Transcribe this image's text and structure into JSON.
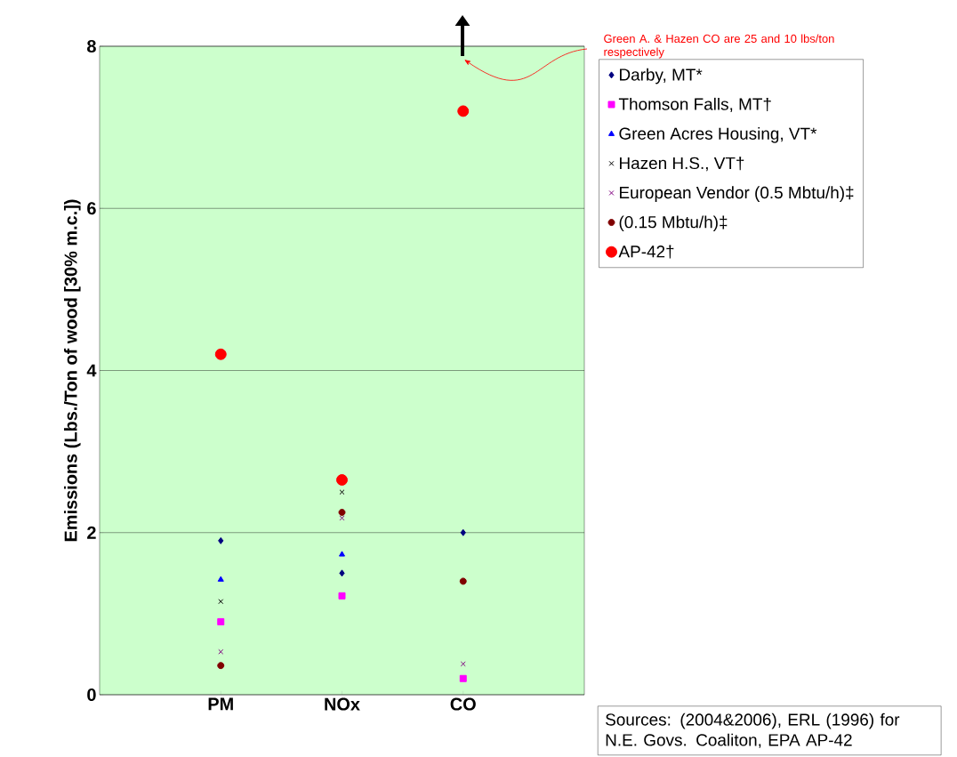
{
  "chart_data": {
    "type": "scatter",
    "ylabel": "Emissions (Lbs./Ton of wood [30% m.c.])",
    "categories": [
      "PM",
      "NOx",
      "CO"
    ],
    "ylim": [
      0,
      8
    ],
    "yticks": [
      0,
      2,
      4,
      6,
      8
    ],
    "grid": "y",
    "legend": "right",
    "series": [
      {
        "name": "Darby, MT*",
        "color": "#000080",
        "marker": "diamond",
        "values": [
          1.9,
          1.5,
          2.0
        ]
      },
      {
        "name": "Thomson Falls, MT†",
        "color": "#ff00ff",
        "marker": "square",
        "values": [
          0.9,
          1.22,
          0.2
        ]
      },
      {
        "name": "Green Acres Housing, VT*",
        "color": "#0000ff",
        "marker": "triangle",
        "values": [
          1.42,
          1.73,
          null
        ]
      },
      {
        "name": "Hazen H.S., VT†",
        "color": "#000000",
        "marker": "cross",
        "values": [
          1.15,
          2.5,
          null
        ]
      },
      {
        "name": "European Vendor (0.5 Mbtu/h)‡",
        "color": "#800080",
        "marker": "cross",
        "values": [
          0.53,
          2.18,
          0.38
        ]
      },
      {
        "name": "(0.15 Mbtu/h)‡",
        "color": "#800000",
        "marker": "circle",
        "values": [
          0.36,
          2.25,
          1.4
        ]
      },
      {
        "name": "AP-42†",
        "color": "#ff0000",
        "marker": "circle",
        "values": [
          4.2,
          2.65,
          7.2
        ]
      }
    ],
    "annotations": [
      "Green A. & Hazen CO are 25 and 10 lbs/ton respectively",
      "Sources: (2004&2006), ERL (1996) for N.E. Govs. Coaliton, EPA AP-42"
    ]
  }
}
